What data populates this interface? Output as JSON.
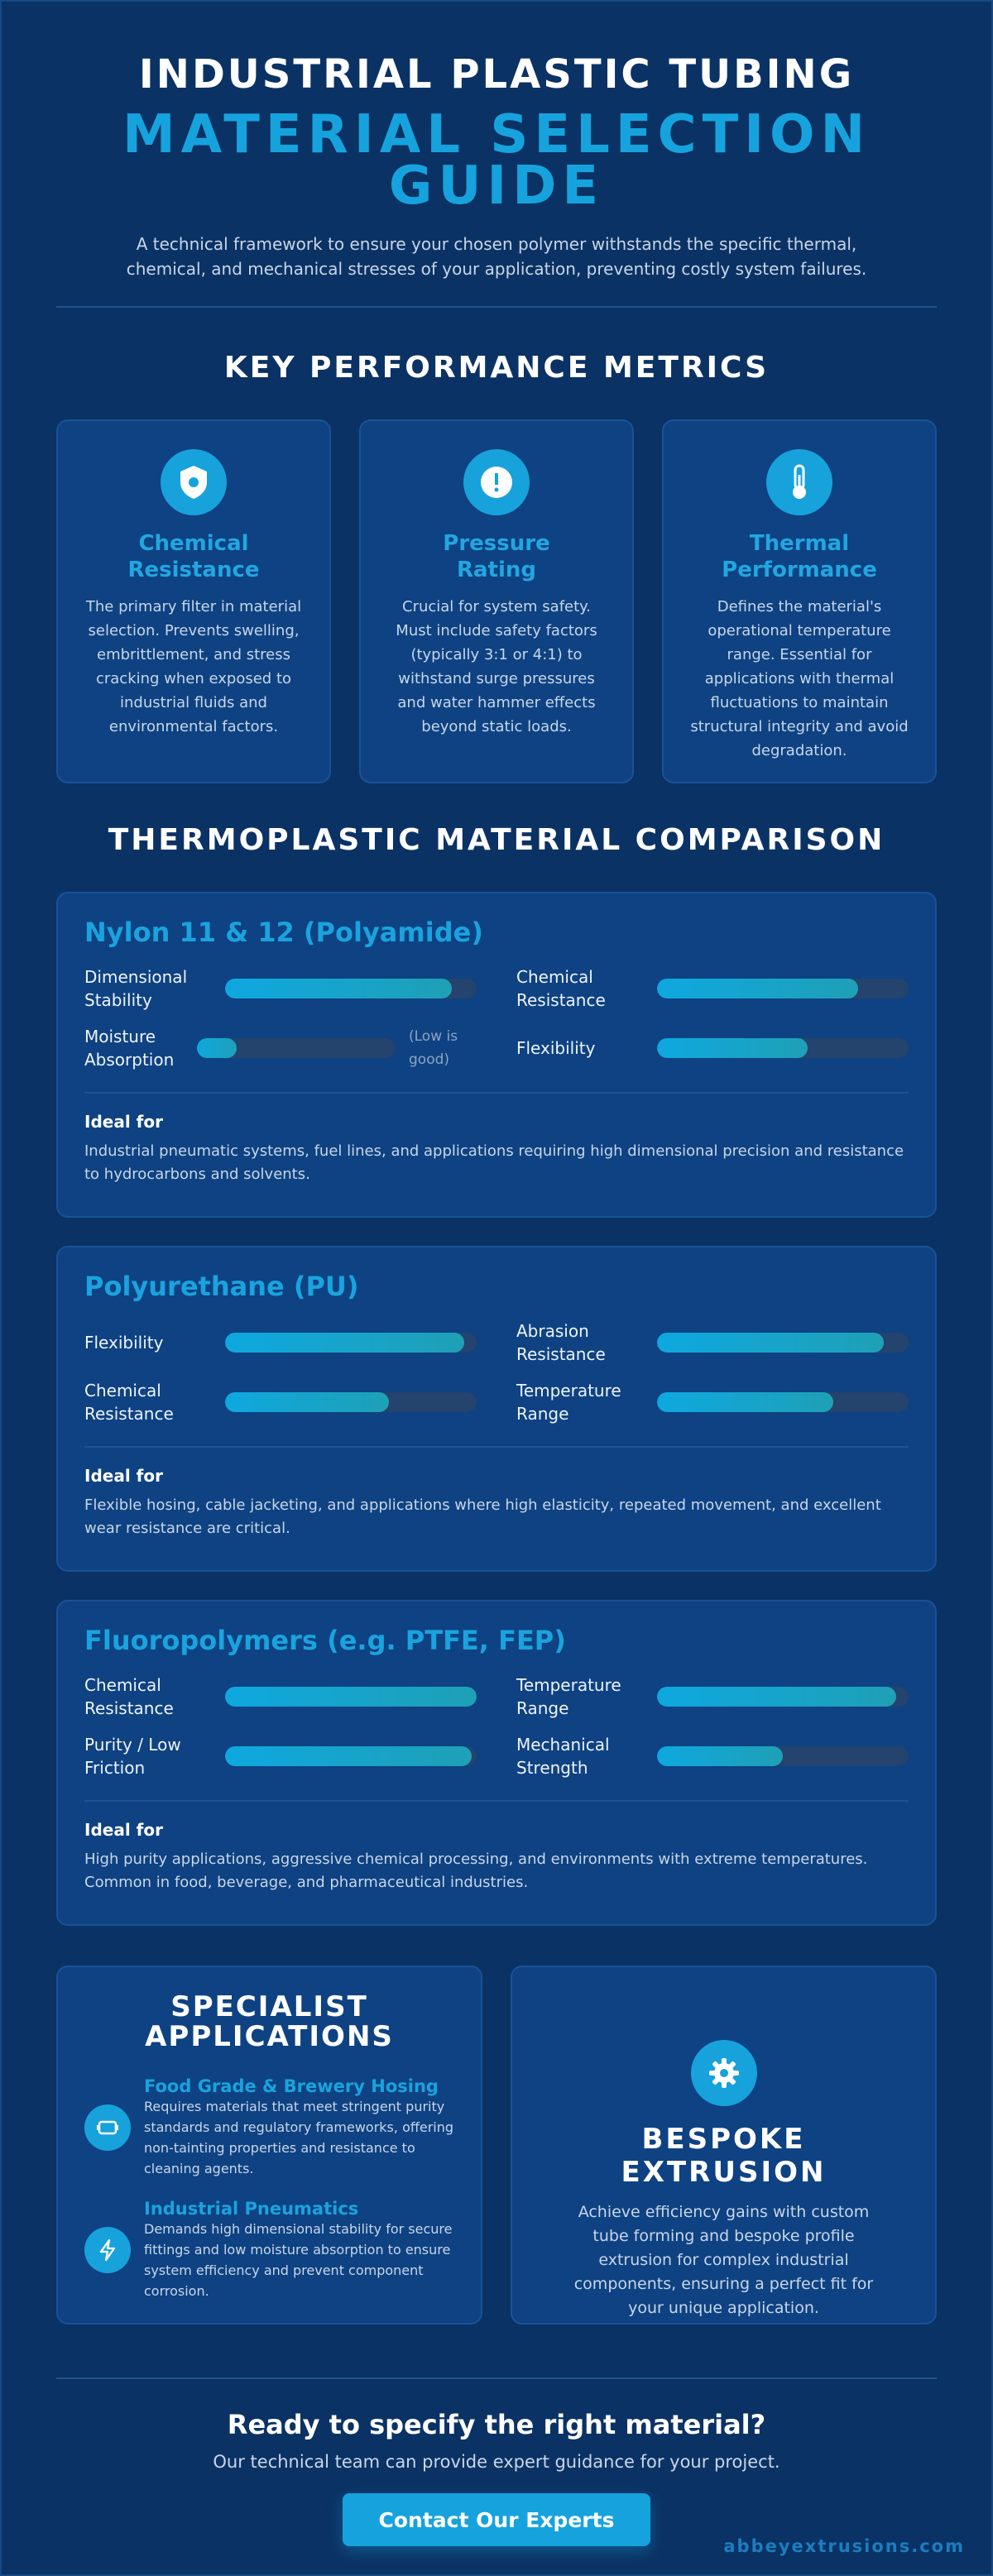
{
  "header": {
    "title_line1": "INDUSTRIAL PLASTIC TUBING",
    "title_line2": "MATERIAL SELECTION GUIDE",
    "intro": "A technical framework to ensure your chosen polymer withstands the specific thermal, chemical, and mechanical stresses of your application, preventing costly system failures."
  },
  "metrics": {
    "heading": "KEY PERFORMANCE METRICS",
    "cards": [
      {
        "title": "Chemical Resistance",
        "text": "The primary filter in material selection. Prevents swelling, embrittlement, and stress cracking when exposed to industrial fluids and environmental factors."
      },
      {
        "title": "Pressure Rating",
        "text": "Crucial for system safety. Must include safety factors (typically 3:1 or 4:1) to withstand surge pressures and water hammer effects beyond static loads."
      },
      {
        "title": "Thermal Performance",
        "text": "Defines the material's operational temperature range. Essential for applications with thermal fluctuations to maintain structural integrity and avoid degradation."
      }
    ]
  },
  "comparison": {
    "heading": "THERMOPLASTIC MATERIAL COMPARISON",
    "xlim": [
      0,
      100
    ],
    "materials": [
      {
        "name": "Nylon 11 & 12 (Polyamide)",
        "properties": [
          {
            "label": "Dimensional Stability",
            "value": 90
          },
          {
            "label": "Chemical Resistance",
            "value": 80
          },
          {
            "label": "Moisture Absorption",
            "value": 20,
            "note": "(Low is good)"
          },
          {
            "label": "Flexibility",
            "value": 60
          }
        ],
        "ideal_heading": "Ideal for",
        "ideal_text": "Industrial pneumatic systems, fuel lines, and applications requiring high dimensional precision and resistance to hydrocarbons and solvents."
      },
      {
        "name": "Polyurethane (PU)",
        "properties": [
          {
            "label": "Flexibility",
            "value": 95
          },
          {
            "label": "Abrasion Resistance",
            "value": 90
          },
          {
            "label": "Chemical Resistance",
            "value": 65
          },
          {
            "label": "Temperature Range",
            "value": 70
          }
        ],
        "ideal_heading": "Ideal for",
        "ideal_text": "Flexible hosing, cable jacketing, and applications where high elasticity, repeated movement, and excellent wear resistance are critical."
      },
      {
        "name": "Fluoropolymers (e.g. PTFE, FEP)",
        "properties": [
          {
            "label": "Chemical Resistance",
            "value": 100
          },
          {
            "label": "Temperature Range",
            "value": 95
          },
          {
            "label": "Purity / Low Friction",
            "value": 98
          },
          {
            "label": "Mechanical Strength",
            "value": 50
          }
        ],
        "ideal_heading": "Ideal for",
        "ideal_text": "High purity applications, aggressive chemical processing, and environments with extreme temperatures. Common in food, beverage, and pharmaceutical industries."
      }
    ]
  },
  "specialist": {
    "heading": "SPECIALIST APPLICATIONS",
    "items": [
      {
        "title": "Food Grade & Brewery Hosing",
        "text": "Requires materials that meet stringent purity standards and regulatory frameworks, offering non-tainting properties and resistance to cleaning agents."
      },
      {
        "title": "Industrial Pneumatics",
        "text": "Demands high dimensional stability for secure fittings and low moisture absorption to ensure system efficiency and prevent component corrosion."
      }
    ]
  },
  "bespoke": {
    "title": "BESPOKE EXTRUSION",
    "text": "Achieve efficiency gains with custom tube forming and bespoke profile extrusion for complex industrial components, ensuring a perfect fit for your unique application."
  },
  "cta": {
    "heading": "Ready to specify the right material?",
    "text": "Our technical team can provide expert guidance for your project.",
    "button": "Contact Our Experts"
  },
  "footer": {
    "site": "abbeyextrusions.com"
  }
}
